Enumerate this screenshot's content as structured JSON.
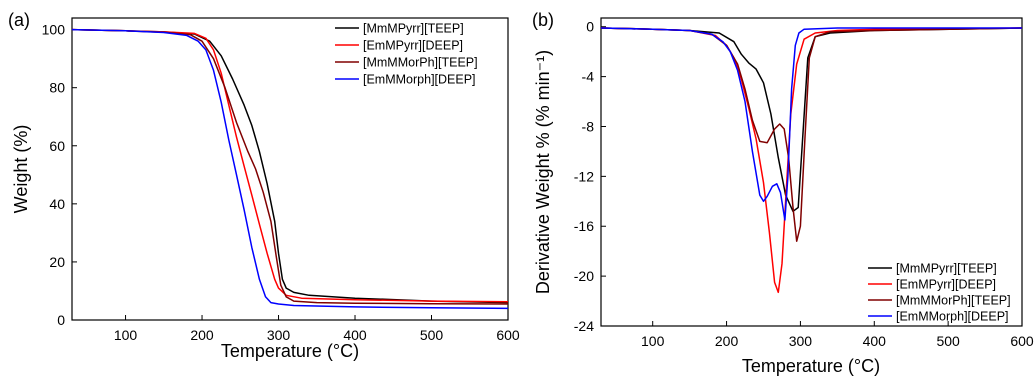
{
  "chart_data": [
    {
      "type": "line",
      "panel_label": "(a)",
      "xlabel": "Temperature (°C)",
      "ylabel": "Weight (%)",
      "xlim": [
        30,
        600
      ],
      "ylim": [
        0,
        104
      ],
      "xticks": [
        100,
        200,
        300,
        400,
        500,
        600
      ],
      "yticks": [
        0,
        20,
        40,
        60,
        80,
        100
      ],
      "grid": false,
      "legend_position": "top-right",
      "series": [
        {
          "name": "[MmMPyrr][TEEP]",
          "color": "#000000",
          "x": [
            30,
            100,
            150,
            190,
            210,
            225,
            240,
            255,
            265,
            275,
            285,
            295,
            300,
            305,
            310,
            320,
            340,
            400,
            500,
            600
          ],
          "y": [
            100,
            99.6,
            99.2,
            98.5,
            96,
            91,
            83,
            74,
            67,
            58,
            47,
            34,
            23,
            14,
            11,
            9.5,
            8.5,
            7.5,
            6.5,
            6
          ]
        },
        {
          "name": "[EmMPyrr][DEEP]",
          "color": "#ff0000",
          "x": [
            30,
            100,
            150,
            190,
            205,
            215,
            225,
            235,
            245,
            255,
            265,
            275,
            285,
            295,
            300,
            310,
            330,
            400,
            500,
            600
          ],
          "y": [
            100,
            99.6,
            99.2,
            98.7,
            97,
            93,
            85,
            74,
            63,
            53,
            43,
            33,
            23,
            14,
            11,
            8.5,
            7.5,
            7,
            6.5,
            6.3
          ]
        },
        {
          "name": "[MmMMorPh][TEEP]",
          "color": "#800000",
          "x": [
            30,
            100,
            150,
            185,
            200,
            215,
            230,
            245,
            260,
            270,
            280,
            290,
            297,
            303,
            310,
            320,
            350,
            400,
            500,
            600
          ],
          "y": [
            100,
            99.6,
            99.1,
            98.2,
            96,
            90,
            80,
            68,
            58,
            52,
            44,
            34,
            22,
            12,
            8,
            6.5,
            6,
            5.8,
            5.6,
            5.5
          ]
        },
        {
          "name": "[EmMMorph][DEEP]",
          "color": "#0000ff",
          "x": [
            30,
            100,
            150,
            180,
            195,
            205,
            215,
            225,
            235,
            245,
            255,
            265,
            275,
            283,
            290,
            300,
            320,
            400,
            500,
            600
          ],
          "y": [
            100,
            99.6,
            99,
            98,
            96,
            93,
            86,
            75,
            62,
            50,
            38,
            25,
            14,
            8,
            6,
            5.5,
            5,
            4.5,
            4.2,
            4
          ]
        }
      ]
    },
    {
      "type": "line",
      "panel_label": "(b)",
      "xlabel": "Temperature (°C)",
      "ylabel": "Derivative Weight % (% min⁻¹)",
      "xlim": [
        30,
        600
      ],
      "ylim": [
        -24,
        0.7
      ],
      "xticks": [
        100,
        200,
        300,
        400,
        500,
        600
      ],
      "yticks": [
        0,
        -4,
        -8,
        -12,
        -16,
        -20,
        -24
      ],
      "grid": false,
      "legend_position": "bottom-right",
      "series": [
        {
          "name": "[MmMPyrr][TEEP]",
          "color": "#000000",
          "x": [
            30,
            100,
            150,
            190,
            210,
            220,
            230,
            240,
            250,
            260,
            270,
            280,
            290,
            297,
            303,
            310,
            320,
            340,
            400,
            600
          ],
          "y": [
            -0.1,
            -0.2,
            -0.3,
            -0.5,
            -1.2,
            -2.2,
            -2.9,
            -3.4,
            -4.5,
            -7,
            -10.5,
            -13.5,
            -14.8,
            -14.5,
            -9,
            -2.5,
            -0.8,
            -0.5,
            -0.3,
            -0.1
          ]
        },
        {
          "name": "[EmMPyrr][DEEP]",
          "color": "#ff0000",
          "x": [
            30,
            100,
            150,
            185,
            200,
            210,
            220,
            230,
            240,
            250,
            258,
            265,
            270,
            275,
            280,
            287,
            295,
            305,
            320,
            350,
            400,
            600
          ],
          "y": [
            -0.1,
            -0.2,
            -0.3,
            -0.7,
            -1.5,
            -2.5,
            -4.2,
            -6.5,
            -9,
            -12.5,
            -16.5,
            -20.5,
            -21.3,
            -19,
            -14,
            -7,
            -3,
            -1,
            -0.5,
            -0.3,
            -0.2,
            -0.1
          ]
        },
        {
          "name": "[MmMMorPh][TEEP]",
          "color": "#800000",
          "x": [
            30,
            100,
            150,
            180,
            200,
            215,
            225,
            235,
            245,
            255,
            265,
            272,
            278,
            284,
            290,
            295,
            300,
            306,
            312,
            320,
            340,
            400,
            600
          ],
          "y": [
            -0.1,
            -0.2,
            -0.3,
            -0.6,
            -1.5,
            -3,
            -5,
            -7.5,
            -9.2,
            -9.3,
            -8.2,
            -7.8,
            -8.2,
            -10.5,
            -14.5,
            -17.2,
            -16,
            -9,
            -2.5,
            -0.8,
            -0.4,
            -0.3,
            -0.1
          ]
        },
        {
          "name": "[EmMMorph][DEEP]",
          "color": "#0000ff",
          "x": [
            30,
            100,
            150,
            180,
            195,
            205,
            215,
            225,
            235,
            245,
            250,
            255,
            262,
            268,
            273,
            279,
            283,
            288,
            293,
            298,
            305,
            350,
            600
          ],
          "y": [
            -0.1,
            -0.2,
            -0.3,
            -0.6,
            -1.2,
            -2,
            -3.5,
            -6,
            -10,
            -13.5,
            -14,
            -13.6,
            -12.8,
            -12.6,
            -13.3,
            -15.5,
            -12,
            -5,
            -1.5,
            -0.5,
            -0.2,
            -0.1,
            -0.1
          ]
        }
      ]
    }
  ]
}
